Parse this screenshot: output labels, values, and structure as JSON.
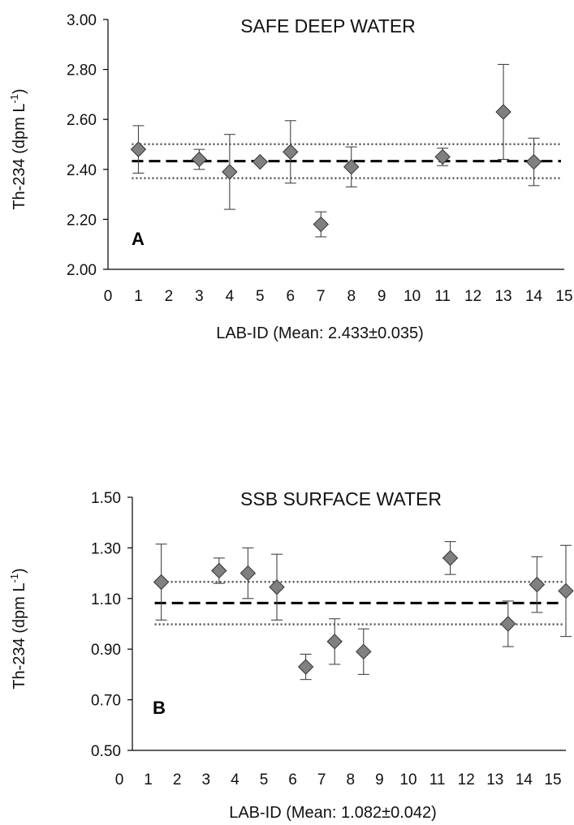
{
  "chart_data": [
    {
      "type": "scatter",
      "panel_letter": "A",
      "title": "SAFE DEEP WATER",
      "xlabel": "LAB-ID (Mean: 2.433±0.035)",
      "ylabel": "Th-234 (dpm L",
      "ylabel_sup": "-1",
      "ylabel_tail": ")",
      "xlim": [
        0,
        15
      ],
      "ylim": [
        2.0,
        3.0
      ],
      "x_ticks": [
        "0",
        "1",
        "2",
        "3",
        "4",
        "5",
        "6",
        "7",
        "8",
        "9",
        "10",
        "11",
        "12",
        "13",
        "14",
        "15"
      ],
      "y_ticks": [
        "2.00",
        "2.20",
        "2.40",
        "2.60",
        "2.80",
        "3.00"
      ],
      "mean": 2.433,
      "band": [
        2.365,
        2.501
      ],
      "points": [
        {
          "x": 1,
          "y": 2.48,
          "err": 0.095
        },
        {
          "x": 3,
          "y": 2.44,
          "err": 0.04
        },
        {
          "x": 4,
          "y": 2.39,
          "err": 0.15
        },
        {
          "x": 5,
          "y": 2.43,
          "err": 0.0
        },
        {
          "x": 6,
          "y": 2.47,
          "err": 0.125
        },
        {
          "x": 7,
          "y": 2.18,
          "err": 0.05
        },
        {
          "x": 8,
          "y": 2.41,
          "err": 0.08
        },
        {
          "x": 11,
          "y": 2.45,
          "err": 0.035
        },
        {
          "x": 13,
          "y": 2.63,
          "err": 0.19
        },
        {
          "x": 14,
          "y": 2.43,
          "err": 0.095
        }
      ],
      "grid": false,
      "legend": "none"
    },
    {
      "type": "scatter",
      "panel_letter": "B",
      "title": "SSB SURFACE WATER",
      "xlabel": "LAB-ID (Mean: 1.082±0.042)",
      "ylabel": "Th-234 (dpm L",
      "ylabel_sup": "-1",
      "ylabel_tail": ")",
      "xlim": [
        0,
        15
      ],
      "ylim": [
        0.5,
        1.5
      ],
      "x_ticks": [
        "0",
        "1",
        "2",
        "3",
        "4",
        "5",
        "6",
        "7",
        "8",
        "9",
        "10",
        "11",
        "12",
        "13",
        "14",
        "15"
      ],
      "y_ticks": [
        "0.50",
        "0.70",
        "0.90",
        "1.10",
        "1.30",
        "1.50"
      ],
      "mean": 1.082,
      "band": [
        0.998,
        1.166
      ],
      "points": [
        {
          "x": 1,
          "y": 1.165,
          "err": 0.15
        },
        {
          "x": 3,
          "y": 1.21,
          "err": 0.05
        },
        {
          "x": 4,
          "y": 1.2,
          "err": 0.1
        },
        {
          "x": 5,
          "y": 1.145,
          "err": 0.13
        },
        {
          "x": 6,
          "y": 0.83,
          "err": 0.05
        },
        {
          "x": 7,
          "y": 0.93,
          "err": 0.09
        },
        {
          "x": 8,
          "y": 0.89,
          "err": 0.09
        },
        {
          "x": 11,
          "y": 1.26,
          "err": 0.065
        },
        {
          "x": 13,
          "y": 1.0,
          "err": 0.09
        },
        {
          "x": 14,
          "y": 1.155,
          "err": 0.11
        },
        {
          "x": 15,
          "y": 1.13,
          "err": 0.18
        }
      ],
      "grid": false,
      "legend": "none"
    }
  ]
}
